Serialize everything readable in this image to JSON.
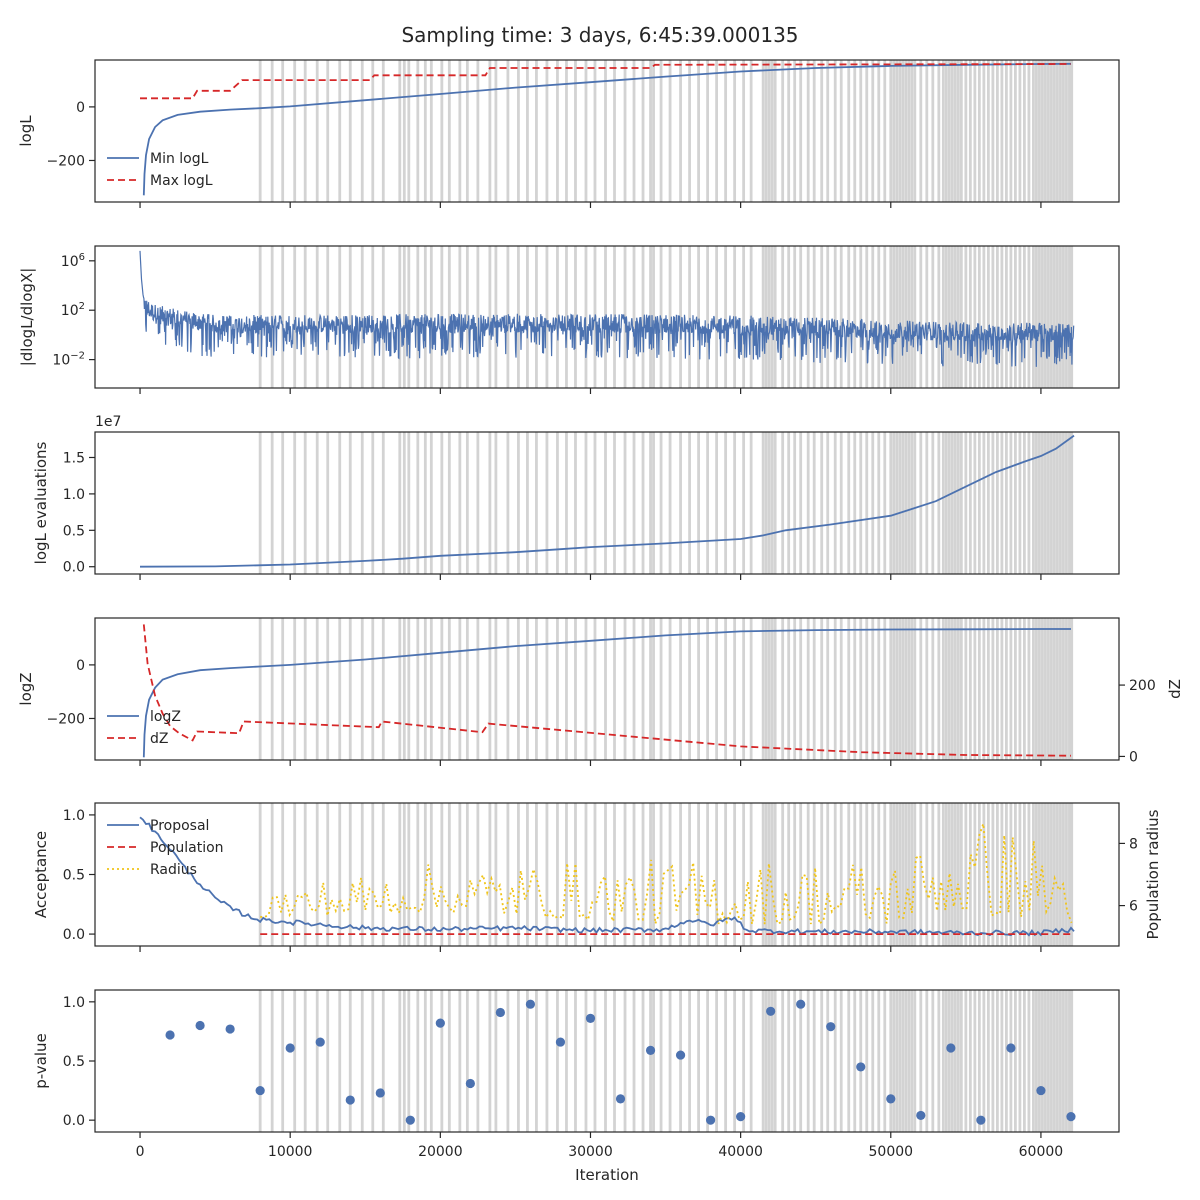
{
  "title": "Sampling time: 3 days, 6:45:39.000135",
  "colors": {
    "blue": "#4c72b0",
    "red": "#d62728",
    "yellow": "#f0c419",
    "band": "#d3d3d3",
    "text": "#262626"
  },
  "x_axis": {
    "label": "Iteration",
    "range": [
      -3000,
      65200
    ],
    "ticks": [
      0,
      10000,
      20000,
      30000,
      40000,
      50000,
      60000
    ],
    "tick_labels": [
      "0",
      "10000",
      "20000",
      "30000",
      "40000",
      "50000",
      "60000"
    ]
  },
  "shaded_iterations": [
    8000,
    8800,
    9500,
    10300,
    11000,
    11800,
    12500,
    13300,
    14000,
    14800,
    15500,
    16200,
    17300,
    17600,
    17900,
    18500,
    19000,
    19400,
    20100,
    20600,
    21300,
    21800,
    22500,
    23300,
    23700,
    24500,
    25200,
    25800,
    26400,
    27100,
    27800,
    28400,
    29000,
    29700,
    30300,
    31000,
    31600,
    32300,
    32900,
    33500,
    34000,
    34200,
    34700,
    35300,
    36000,
    36600,
    37200,
    37800,
    38400,
    39000,
    39600,
    40200,
    40700,
    41500,
    41700,
    41900,
    42100,
    42300,
    42800,
    43200,
    43600,
    44000,
    44500,
    44900,
    45400,
    45800,
    46300,
    46700,
    47200,
    47600,
    48000,
    48400,
    48800,
    49200,
    49600,
    50000,
    50200,
    50400,
    50600,
    50800,
    51000,
    51200,
    51400,
    51600,
    52000,
    52400,
    52800,
    53200,
    53500,
    53700,
    53900,
    54100,
    54300,
    54500,
    54700,
    55000,
    55300,
    55600,
    55900,
    56200,
    56500,
    56800,
    57100,
    57400,
    57700,
    58000,
    58300,
    58600,
    58900,
    59200,
    59500,
    59700,
    59900,
    60100,
    60300,
    60500,
    60700,
    60900,
    61100,
    61300,
    61500,
    61700,
    61900,
    62050
  ],
  "chart_data": [
    {
      "id": "logl",
      "type": "line",
      "ylabel": "logL",
      "ylim": [
        -355,
        175
      ],
      "yticks": [
        -200,
        0
      ],
      "ytick_labels": [
        "−200",
        "0"
      ],
      "legend": {
        "placement": "lower-left",
        "entries": [
          "Min logL",
          "Max logL"
        ]
      },
      "series": [
        {
          "name": "Min logL",
          "style": "solid",
          "color": "blue",
          "x": [
            250,
            300,
            400,
            600,
            1000,
            1500,
            2500,
            4000,
            6000,
            8000,
            10000,
            15000,
            20000,
            25000,
            30000,
            35000,
            40000,
            45000,
            50000,
            55000,
            60000,
            62000
          ],
          "y": [
            -330,
            -250,
            -180,
            -120,
            -75,
            -50,
            -30,
            -18,
            -10,
            -5,
            2,
            25,
            48,
            72,
            92,
            113,
            132,
            145,
            153,
            157,
            160,
            161
          ]
        },
        {
          "name": "Max logL",
          "style": "dashed",
          "color": "red",
          "x": [
            0,
            3500,
            3800,
            6000,
            6800,
            15300,
            15600,
            23000,
            23300,
            34000,
            34300,
            62000
          ],
          "y": [
            32,
            32,
            60,
            60,
            100,
            100,
            118,
            118,
            145,
            145,
            157,
            160
          ]
        }
      ]
    },
    {
      "id": "dlogl",
      "type": "line",
      "ylabel": "|dlogL/dlogX|",
      "yscale": "log",
      "ylim_log10": [
        -4.3,
        7.2
      ],
      "yticks_log10": [
        -2,
        2,
        6
      ],
      "ytick_labels": [
        "10^-2",
        "10^2",
        "10^6"
      ],
      "series": [
        {
          "name": "",
          "style": "solid",
          "color": "blue",
          "envelope_x": [
            0,
            100,
            300,
            600,
            1200,
            2500,
            5000,
            10000,
            20000,
            30000,
            40000,
            45000,
            50000,
            55000,
            60000,
            62200
          ],
          "envelope_hi_log10": [
            6.8,
            4.5,
            3.3,
            2.9,
            2.6,
            2.3,
            1.8,
            1.8,
            1.9,
            1.9,
            1.8,
            1.6,
            1.4,
            1.2,
            1.2,
            1.1
          ],
          "envelope_lo_log10": [
            2.0,
            1.0,
            0.0,
            -0.8,
            -1.2,
            -1.6,
            -1.8,
            -1.9,
            -1.9,
            -1.9,
            -2.1,
            -2.3,
            -2.5,
            -2.6,
            -2.6,
            -2.4
          ]
        }
      ]
    },
    {
      "id": "evals",
      "type": "line",
      "ylabel": "logL evaluations",
      "offset_label": "1e7",
      "ylim": [
        -0.1,
        1.85
      ],
      "yticks": [
        0.0,
        0.5,
        1.0,
        1.5
      ],
      "ytick_labels": [
        "0.0",
        "0.5",
        "1.0",
        "1.5"
      ],
      "series": [
        {
          "name": "",
          "style": "solid",
          "color": "blue",
          "x": [
            0,
            5000,
            10000,
            15000,
            17500,
            20000,
            25000,
            28000,
            30000,
            35000,
            40000,
            41500,
            43000,
            46000,
            50000,
            51500,
            53000,
            55000,
            57000,
            59000,
            60000,
            61000,
            62200
          ],
          "y": [
            0.0,
            0.005,
            0.03,
            0.08,
            0.11,
            0.15,
            0.2,
            0.24,
            0.27,
            0.32,
            0.38,
            0.43,
            0.5,
            0.58,
            0.7,
            0.8,
            0.9,
            1.1,
            1.3,
            1.45,
            1.52,
            1.62,
            1.8
          ]
        }
      ]
    },
    {
      "id": "logz",
      "type": "line",
      "ylabel": "logZ",
      "ylim": [
        -355,
        175
      ],
      "yticks": [
        -200,
        0
      ],
      "ytick_labels": [
        "−200",
        "0"
      ],
      "ylabel_right": "dZ",
      "ylim_right": [
        -10,
        388
      ],
      "yticks_right": [
        0,
        200
      ],
      "ytick_labels_right": [
        "0",
        "200"
      ],
      "legend": {
        "placement": "lower-left",
        "entries": [
          "logZ",
          "dZ"
        ]
      },
      "series": [
        {
          "name": "logZ",
          "style": "solid",
          "color": "blue",
          "axis": "left",
          "x": [
            250,
            300,
            400,
            600,
            1000,
            1500,
            2500,
            4000,
            6000,
            8000,
            10000,
            15000,
            20000,
            25000,
            30000,
            35000,
            40000,
            45000,
            50000,
            55000,
            60000,
            62000
          ],
          "y": [
            -345,
            -260,
            -190,
            -130,
            -85,
            -55,
            -35,
            -20,
            -12,
            -6,
            0,
            20,
            45,
            70,
            90,
            110,
            125,
            130,
            132,
            133,
            134,
            134
          ]
        },
        {
          "name": "dZ",
          "style": "dashed",
          "color": "red",
          "axis": "right",
          "x": [
            250,
            500,
            1000,
            1500,
            2000,
            2600,
            3500,
            3800,
            6600,
            6900,
            15900,
            16100,
            22800,
            23200,
            40000,
            48000,
            55000,
            62000
          ],
          "y": [
            370,
            260,
            170,
            120,
            85,
            65,
            45,
            70,
            65,
            98,
            82,
            98,
            68,
            92,
            28,
            12,
            4,
            2
          ]
        }
      ]
    },
    {
      "id": "acceptance",
      "type": "line",
      "ylabel": "Acceptance",
      "ylim": [
        -0.1,
        1.1
      ],
      "yticks": [
        0.0,
        0.5,
        1.0
      ],
      "ytick_labels": [
        "0.0",
        "0.5",
        "1.0"
      ],
      "ylabel_right": "Population radius",
      "ylim_right": [
        4.7,
        9.3
      ],
      "yticks_right": [
        6,
        8
      ],
      "ytick_labels_right": [
        "6",
        "8"
      ],
      "legend": {
        "placement": "upper-left",
        "entries": [
          "Proposal",
          "Population",
          "Radius"
        ]
      },
      "series": [
        {
          "name": "Proposal",
          "style": "solid",
          "color": "blue",
          "axis": "left",
          "x": [
            0,
            1000,
            2000,
            3000,
            4000,
            5000,
            6000,
            7000,
            8000,
            10000,
            15000,
            20000,
            25000,
            30000,
            35000,
            36500,
            38000,
            39500,
            40500,
            45000,
            50000,
            55000,
            60000,
            62200
          ],
          "y": [
            1.0,
            0.85,
            0.72,
            0.55,
            0.42,
            0.3,
            0.22,
            0.16,
            0.12,
            0.1,
            0.05,
            0.04,
            0.05,
            0.03,
            0.04,
            0.12,
            0.08,
            0.14,
            0.03,
            0.02,
            0.02,
            0.01,
            0.01,
            0.04
          ]
        },
        {
          "name": "Population",
          "style": "dashed",
          "color": "red",
          "axis": "left",
          "x": [
            8000,
            62200
          ],
          "y": [
            0.0,
            0.0
          ]
        },
        {
          "name": "Radius",
          "style": "dotted",
          "color": "yellow",
          "axis": "right",
          "x_range": [
            8000,
            62200
          ],
          "level_x": [
            8000,
            20000,
            35000,
            50000,
            53000,
            55000,
            60000,
            62200
          ],
          "level_lo": [
            5.6,
            5.8,
            5.4,
            5.4,
            5.8,
            5.7,
            5.6,
            5.4
          ],
          "level_hi": [
            6.6,
            7.4,
            7.5,
            7.6,
            8.2,
            9.0,
            8.3,
            7.8
          ]
        }
      ]
    },
    {
      "id": "pvalue",
      "type": "scatter",
      "ylabel": "p-value",
      "ylim": [
        -0.1,
        1.1
      ],
      "yticks": [
        0.0,
        0.5,
        1.0
      ],
      "ytick_labels": [
        "0.0",
        "0.5",
        "1.0"
      ],
      "series": [
        {
          "name": "",
          "color": "blue",
          "x": [
            2000,
            4000,
            6000,
            8000,
            10000,
            12000,
            14000,
            16000,
            18000,
            20000,
            22000,
            24000,
            26000,
            28000,
            30000,
            32000,
            34000,
            36000,
            38000,
            40000,
            42000,
            44000,
            46000,
            48000,
            50000,
            52000,
            54000,
            56000,
            58000,
            60000,
            62000
          ],
          "y": [
            0.72,
            0.8,
            0.77,
            0.25,
            0.61,
            0.66,
            0.17,
            0.23,
            0.0,
            0.82,
            0.31,
            0.91,
            0.98,
            0.66,
            0.86,
            0.18,
            0.59,
            0.55,
            0.0,
            0.03,
            0.92,
            0.98,
            0.79,
            0.45,
            0.18,
            0.04,
            0.61,
            0.0,
            0.61,
            0.25,
            0.03
          ]
        }
      ]
    }
  ]
}
